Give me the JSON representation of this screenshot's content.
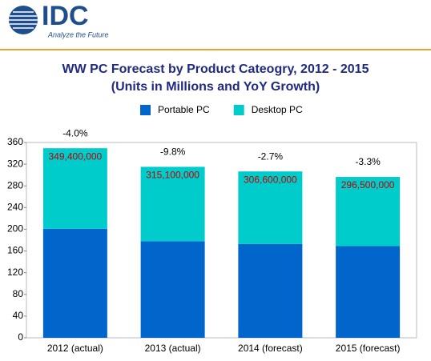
{
  "logo": {
    "name": "IDC",
    "tagline": "Analyze the Future"
  },
  "chart_data": {
    "type": "bar",
    "stacked": true,
    "title": "WW PC Forecast by Product Cateogry, 2012 - 2015",
    "subtitle": "(Units in Millions and YoY Growth)",
    "categories": [
      "2012 (actual)",
      "2013 (actual)",
      "2014 (forecast)",
      "2015 (forecast)"
    ],
    "series": [
      {
        "name": "Portable PC",
        "color": "#0066cc",
        "values": [
          201,
          178,
          173,
          169
        ]
      },
      {
        "name": "Desktop PC",
        "color": "#00cccc",
        "values": [
          148.4,
          137.1,
          133.6,
          127.5
        ]
      }
    ],
    "totals": {
      "values": [
        349.4,
        315.1,
        306.6,
        296.5
      ],
      "value_labels": [
        "349,400,000",
        "315,100,000",
        "306,600,000",
        "296,500,000"
      ]
    },
    "growth_labels": [
      "-4.0%",
      "-9.8%",
      "-2.7%",
      "-3.3%"
    ],
    "ylim": [
      0,
      360
    ],
    "yticks": [
      0,
      40,
      80,
      120,
      160,
      200,
      240,
      280,
      320,
      360
    ],
    "grid": false,
    "legend": "top"
  }
}
